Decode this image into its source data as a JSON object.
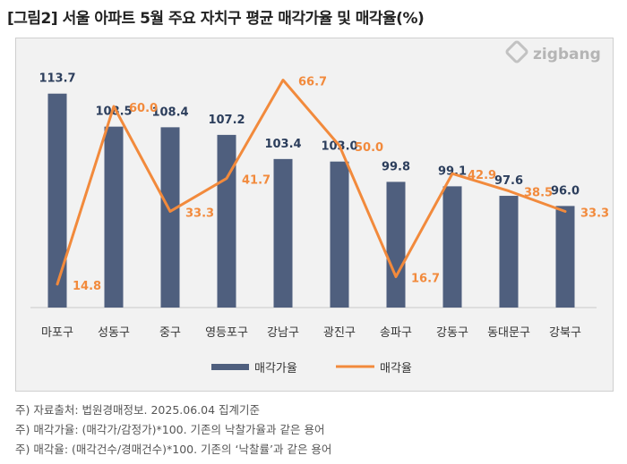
{
  "title": "[그림2] 서울 아파트 5월 주요 자치구 평균 매각가율 및 매각율(%)",
  "brand": {
    "logo_text": "zigbang",
    "logo_icon": "zigbang-logo-icon"
  },
  "colors": {
    "bar": "#4f5f7e",
    "line": "#f28a3c",
    "bar_label": "#2c3e5c",
    "line_label": "#f28a3c"
  },
  "chart_data": {
    "type": "bar",
    "categories": [
      "마포구",
      "성동구",
      "중구",
      "영등포구",
      "강남구",
      "광진구",
      "송파구",
      "강동구",
      "동대문구",
      "강북구"
    ],
    "series": [
      {
        "name": "매각가율",
        "type": "bar",
        "values": [
          113.7,
          108.5,
          108.4,
          107.2,
          103.4,
          103.0,
          99.8,
          99.1,
          97.6,
          96.0
        ]
      },
      {
        "name": "매각율",
        "type": "line",
        "values": [
          14.8,
          60.0,
          33.3,
          41.7,
          66.7,
          50.0,
          16.7,
          42.9,
          38.5,
          33.3
        ]
      }
    ],
    "value_labels": {
      "bar": [
        "113.7",
        "108.5",
        "108.4",
        "107.2",
        "103.4",
        "103.0",
        "99.8",
        "99.1",
        "97.6",
        "96.0"
      ],
      "line": [
        "14.8",
        "60.0",
        "33.3",
        "41.7",
        "66.7",
        "50.0",
        "16.7",
        "42.9",
        "38.5",
        "33.3"
      ]
    },
    "legend_position": "bottom",
    "grid": false
  },
  "notes": [
    "주) 자료출처: 법원경매정보. 2025.06.04 집계기준",
    "주) 매각가율: (매각가/감정가)*100. 기존의 낙찰가율과 같은 용어",
    "주) 매각율: (매각건수/경매건수)*100. 기존의 ‘낙찰률’과 같은 용어"
  ]
}
